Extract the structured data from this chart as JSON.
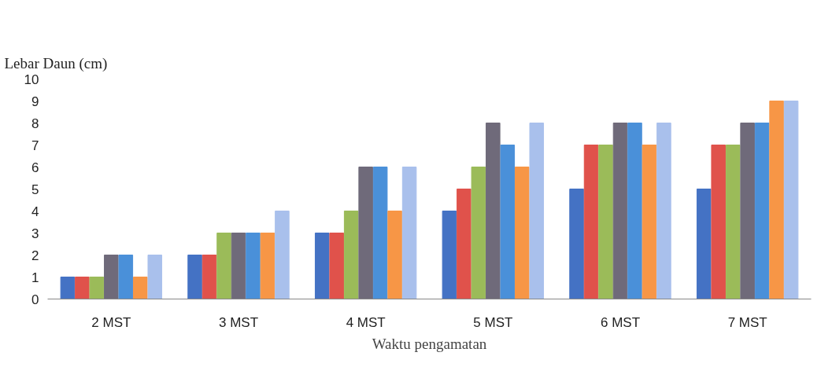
{
  "chart_data": {
    "type": "bar",
    "xlabel": "Waktu pengamatan",
    "ylabel": "Lebar Daun (cm)",
    "categories": [
      "2 MST",
      "3 MST",
      "4 MST",
      "5 MST",
      "6 MST",
      "7 MST"
    ],
    "series": [
      {
        "color": "#4472c4",
        "values": [
          1,
          2,
          3,
          4,
          5,
          5
        ]
      },
      {
        "color": "#e0524b",
        "values": [
          1,
          2,
          3,
          5,
          7,
          7
        ]
      },
      {
        "color": "#9bbb59",
        "values": [
          1,
          3,
          4,
          6,
          7,
          7
        ]
      },
      {
        "color": "#6f6a7a",
        "values": [
          2,
          3,
          6,
          8,
          8,
          8
        ]
      },
      {
        "color": "#4a90d9",
        "values": [
          2,
          3,
          6,
          7,
          8,
          8
        ]
      },
      {
        "color": "#f79646",
        "values": [
          1,
          3,
          4,
          6,
          7,
          9
        ]
      },
      {
        "color": "#a9c0ec",
        "values": [
          2,
          4,
          6,
          8,
          8,
          9
        ]
      }
    ],
    "ylim": [
      0,
      10
    ],
    "yticks": [
      0,
      1,
      2,
      3,
      4,
      5,
      6,
      7,
      8,
      9,
      10
    ],
    "grid": false
  }
}
